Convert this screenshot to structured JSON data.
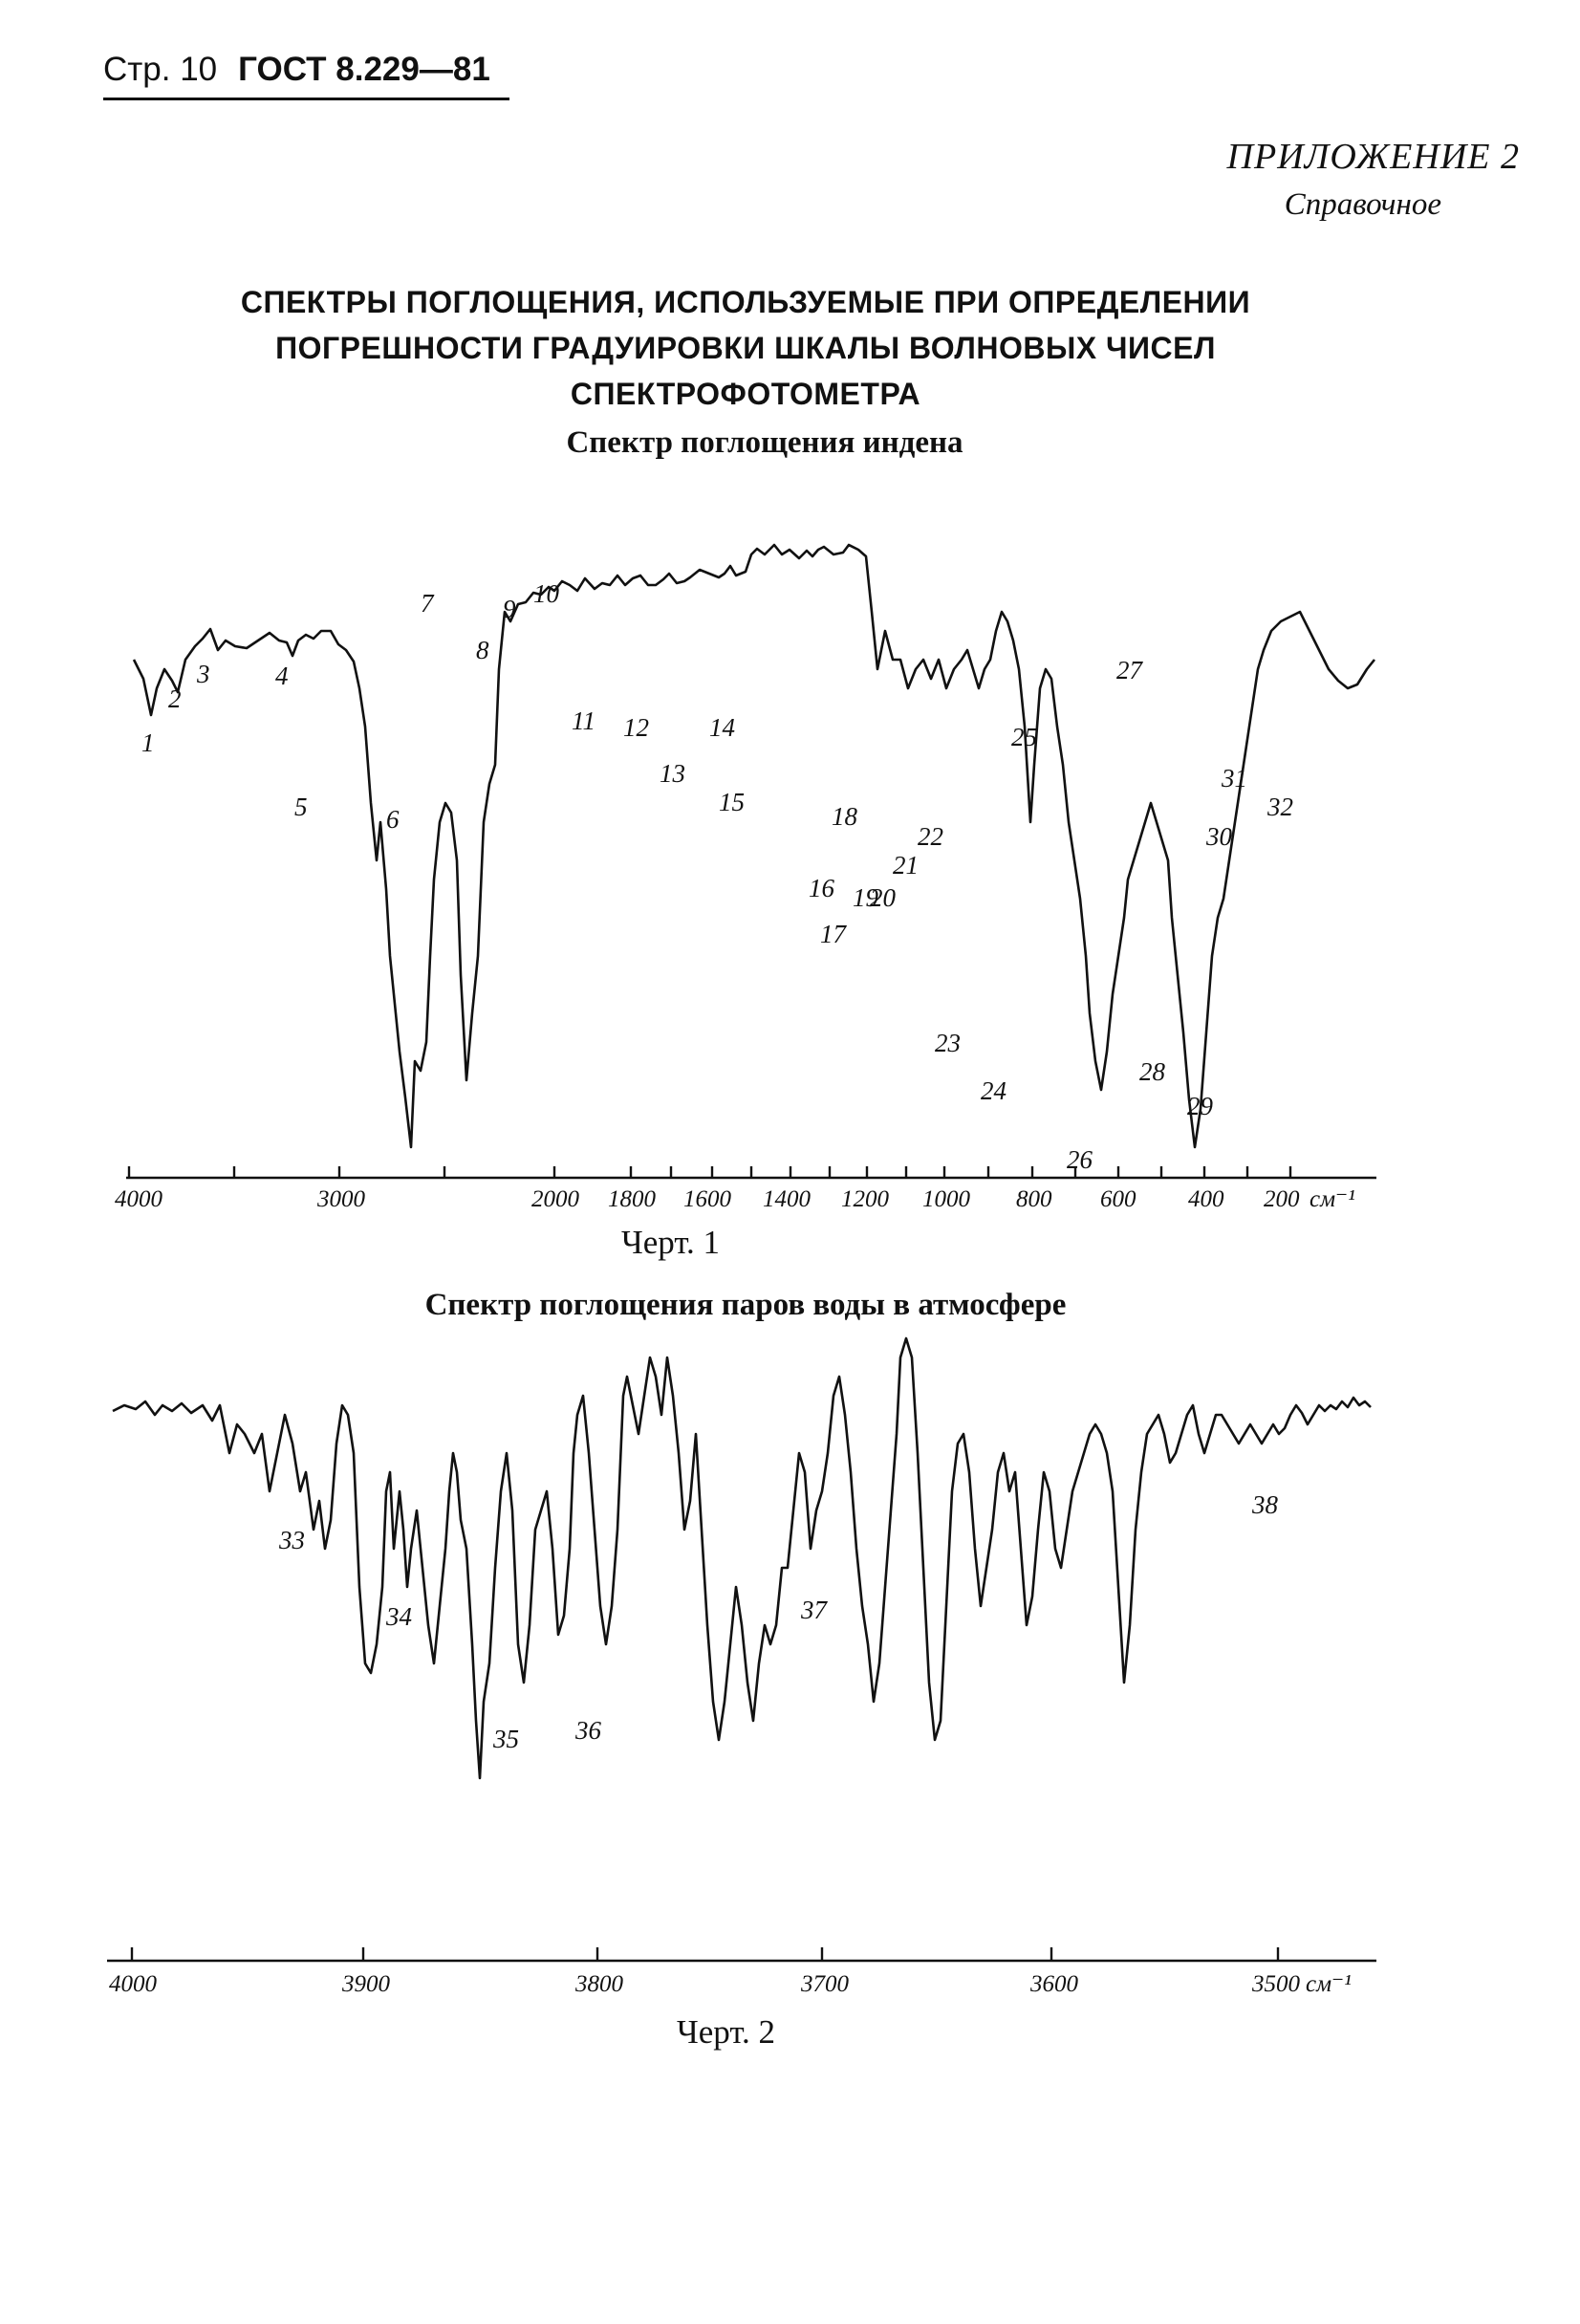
{
  "header": {
    "page": "Стр. 10",
    "standard": "ГОСТ 8.229—81"
  },
  "appendix": {
    "title": "ПРИЛОЖЕНИЕ 2",
    "subtitle": "Справочное"
  },
  "main_title": [
    "СПЕКТРЫ ПОГЛОЩЕНИЯ, ИСПОЛЬЗУЕМЫЕ ПРИ ОПРЕДЕЛЕНИИ",
    "ПОГРЕШНОСТИ ГРАДУИРОВКИ ШКАЛЫ ВОЛНОВЫХ ЧИСЕЛ",
    "СПЕКТРОФОТОМЕТРА"
  ],
  "chart_data": [
    {
      "type": "line",
      "title": "Спектр поглощения индена",
      "caption": "Черт. 1",
      "axis_unit": "см⁻¹",
      "x_ticks": [
        "4000",
        "3000",
        "2000",
        "1800",
        "1600",
        "1400",
        "1200",
        "1000",
        "800",
        "600",
        "400",
        "200"
      ],
      "peak_labels": [
        "1",
        "2",
        "3",
        "4",
        "5",
        "6",
        "7",
        "8",
        "9",
        "10",
        "11",
        "12",
        "13",
        "14",
        "15",
        "16",
        "17",
        "18",
        "19",
        "20",
        "21",
        "22",
        "23",
        "24",
        "25",
        "26",
        "27",
        "28",
        "29",
        "30",
        "31",
        "32"
      ],
      "grid": false
    },
    {
      "type": "line",
      "title": "Спектр поглощения паров воды в атмосфере",
      "caption": "Черт. 2",
      "axis_unit": "см⁻¹",
      "x_ticks": [
        "4000",
        "3900",
        "3800",
        "3700",
        "3600",
        "3500"
      ],
      "peak_labels": [
        "33",
        "34",
        "35",
        "36",
        "37",
        "38"
      ],
      "grid": false
    }
  ]
}
